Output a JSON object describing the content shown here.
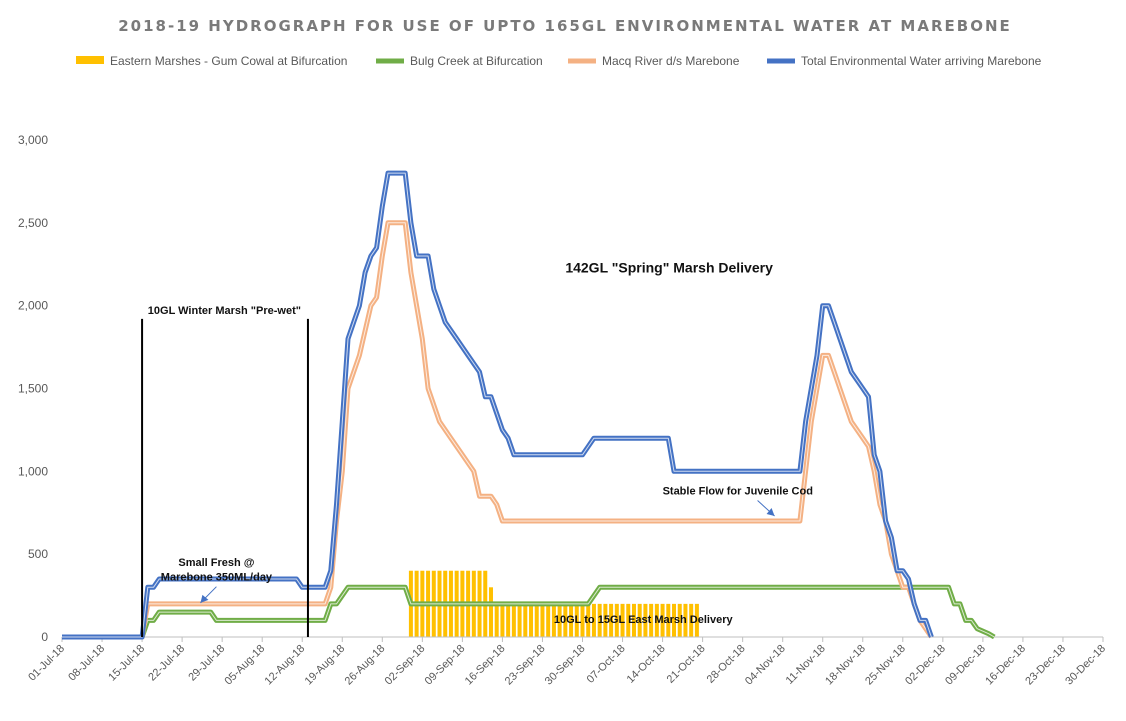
{
  "chart_data": {
    "type": "line",
    "title": "2018-19 HYDROGRAPH FOR USE OF UPTO 165GL ENVIRONMENTAL WATER AT MAREBONE",
    "xlabel": "",
    "ylabel": "",
    "ylim": [
      0,
      3000
    ],
    "yticks": [
      0,
      500,
      1000,
      1500,
      2000,
      2500,
      3000
    ],
    "ytick_labels": [
      "0",
      "500",
      "1,000",
      "1,500",
      "2,000",
      "2,500",
      "3,000"
    ],
    "xtick_labels": [
      "01-Jul-18",
      "08-Jul-18",
      "15-Jul-18",
      "22-Jul-18",
      "29-Jul-18",
      "05-Aug-18",
      "12-Aug-18",
      "19-Aug-18",
      "26-Aug-18",
      "02-Sep-18",
      "09-Sep-18",
      "16-Sep-18",
      "23-Sep-18",
      "30-Sep-18",
      "07-Oct-18",
      "14-Oct-18",
      "21-Oct-18",
      "28-Oct-18",
      "04-Nov-18",
      "11-Nov-18",
      "18-Nov-18",
      "25-Nov-18",
      "02-Dec-18",
      "09-Dec-18",
      "16-Dec-18",
      "23-Dec-18",
      "30-Dec-18"
    ],
    "x_range_days": [
      0,
      182
    ],
    "grid": false,
    "legend_position": "top",
    "series": [
      {
        "name": "Eastern Marshes - Gum Cowal at Bifurcation",
        "kind": "bar",
        "color": "#FFC000",
        "points": [
          [
            61,
            400
          ],
          [
            62,
            400
          ],
          [
            63,
            400
          ],
          [
            64,
            400
          ],
          [
            65,
            400
          ],
          [
            66,
            400
          ],
          [
            67,
            400
          ],
          [
            68,
            400
          ],
          [
            69,
            400
          ],
          [
            70,
            400
          ],
          [
            71,
            400
          ],
          [
            72,
            400
          ],
          [
            73,
            400
          ],
          [
            74,
            400
          ],
          [
            75,
            300
          ],
          [
            76,
            200
          ],
          [
            77,
            200
          ],
          [
            78,
            200
          ],
          [
            79,
            200
          ],
          [
            80,
            200
          ],
          [
            81,
            200
          ],
          [
            82,
            200
          ],
          [
            83,
            200
          ],
          [
            84,
            200
          ],
          [
            85,
            200
          ],
          [
            86,
            200
          ],
          [
            87,
            200
          ],
          [
            88,
            200
          ],
          [
            89,
            200
          ],
          [
            90,
            200
          ],
          [
            91,
            200
          ],
          [
            92,
            200
          ],
          [
            93,
            200
          ],
          [
            94,
            200
          ],
          [
            95,
            200
          ],
          [
            96,
            200
          ],
          [
            97,
            200
          ],
          [
            98,
            200
          ],
          [
            99,
            200
          ],
          [
            100,
            200
          ],
          [
            101,
            200
          ],
          [
            102,
            200
          ],
          [
            103,
            200
          ],
          [
            104,
            200
          ],
          [
            105,
            200
          ],
          [
            106,
            200
          ],
          [
            107,
            200
          ],
          [
            108,
            200
          ],
          [
            109,
            200
          ],
          [
            110,
            200
          ],
          [
            111,
            200
          ]
        ]
      },
      {
        "name": "Bulg Creek at Bifurcation",
        "kind": "line",
        "color": "#70AD47",
        "points": [
          [
            0,
            0
          ],
          [
            13,
            0
          ],
          [
            14,
            0
          ],
          [
            15,
            100
          ],
          [
            16,
            100
          ],
          [
            17,
            150
          ],
          [
            26,
            150
          ],
          [
            27,
            100
          ],
          [
            46,
            100
          ],
          [
            47,
            200
          ],
          [
            48,
            200
          ],
          [
            50,
            300
          ],
          [
            60,
            300
          ],
          [
            61,
            200
          ],
          [
            92,
            200
          ],
          [
            94,
            300
          ],
          [
            155,
            300
          ],
          [
            156,
            200
          ],
          [
            157,
            200
          ],
          [
            158,
            100
          ],
          [
            159,
            100
          ],
          [
            160,
            50
          ],
          [
            162,
            20
          ],
          [
            163,
            0
          ]
        ]
      },
      {
        "name": "Macq River d/s Marebone",
        "kind": "line",
        "color": "#F4B183",
        "points": [
          [
            0,
            0
          ],
          [
            13,
            0
          ],
          [
            14,
            0
          ],
          [
            15,
            200
          ],
          [
            46,
            200
          ],
          [
            47,
            300
          ],
          [
            48,
            700
          ],
          [
            49,
            1000
          ],
          [
            50,
            1500
          ],
          [
            52,
            1700
          ],
          [
            54,
            2000
          ],
          [
            55,
            2050
          ],
          [
            56,
            2300
          ],
          [
            57,
            2500
          ],
          [
            60,
            2500
          ],
          [
            61,
            2200
          ],
          [
            62,
            2000
          ],
          [
            63,
            1800
          ],
          [
            64,
            1500
          ],
          [
            66,
            1300
          ],
          [
            68,
            1200
          ],
          [
            70,
            1100
          ],
          [
            72,
            1000
          ],
          [
            73,
            850
          ],
          [
            75,
            850
          ],
          [
            76,
            800
          ],
          [
            77,
            700
          ],
          [
            129,
            700
          ],
          [
            131,
            1300
          ],
          [
            132,
            1500
          ],
          [
            133,
            1700
          ],
          [
            134,
            1700
          ],
          [
            135,
            1600
          ],
          [
            136,
            1500
          ],
          [
            137,
            1400
          ],
          [
            138,
            1300
          ],
          [
            140,
            1200
          ],
          [
            141,
            1150
          ],
          [
            142,
            1000
          ],
          [
            143,
            800
          ],
          [
            144,
            700
          ],
          [
            145,
            500
          ],
          [
            146,
            400
          ],
          [
            147,
            300
          ],
          [
            148,
            300
          ],
          [
            149,
            200
          ],
          [
            150,
            100
          ],
          [
            151,
            50
          ],
          [
            152,
            0
          ]
        ]
      },
      {
        "name": "Total Environmental Water arriving Marebone",
        "kind": "line",
        "color": "#4472C4",
        "points": [
          [
            0,
            0
          ],
          [
            13,
            0
          ],
          [
            14,
            0
          ],
          [
            15,
            300
          ],
          [
            16,
            300
          ],
          [
            17,
            350
          ],
          [
            41,
            350
          ],
          [
            42,
            300
          ],
          [
            46,
            300
          ],
          [
            47,
            400
          ],
          [
            48,
            800
          ],
          [
            49,
            1300
          ],
          [
            50,
            1800
          ],
          [
            51,
            1900
          ],
          [
            52,
            2000
          ],
          [
            53,
            2200
          ],
          [
            54,
            2300
          ],
          [
            55,
            2350
          ],
          [
            56,
            2600
          ],
          [
            57,
            2800
          ],
          [
            60,
            2800
          ],
          [
            61,
            2500
          ],
          [
            62,
            2300
          ],
          [
            64,
            2300
          ],
          [
            65,
            2100
          ],
          [
            66,
            2000
          ],
          [
            67,
            1900
          ],
          [
            69,
            1800
          ],
          [
            71,
            1700
          ],
          [
            73,
            1600
          ],
          [
            74,
            1450
          ],
          [
            75,
            1450
          ],
          [
            76,
            1350
          ],
          [
            77,
            1250
          ],
          [
            78,
            1200
          ],
          [
            79,
            1100
          ],
          [
            91,
            1100
          ],
          [
            92,
            1150
          ],
          [
            93,
            1200
          ],
          [
            106,
            1200
          ],
          [
            107,
            1000
          ],
          [
            129,
            1000
          ],
          [
            130,
            1300
          ],
          [
            131,
            1500
          ],
          [
            132,
            1700
          ],
          [
            133,
            2000
          ],
          [
            134,
            2000
          ],
          [
            135,
            1900
          ],
          [
            136,
            1800
          ],
          [
            137,
            1700
          ],
          [
            138,
            1600
          ],
          [
            140,
            1500
          ],
          [
            141,
            1450
          ],
          [
            142,
            1100
          ],
          [
            143,
            1000
          ],
          [
            144,
            700
          ],
          [
            145,
            600
          ],
          [
            146,
            400
          ],
          [
            147,
            400
          ],
          [
            148,
            350
          ],
          [
            149,
            200
          ],
          [
            150,
            100
          ],
          [
            151,
            100
          ],
          [
            152,
            0
          ]
        ]
      }
    ],
    "vertical_markers": [
      {
        "x": 14,
        "y_top": 1920
      },
      {
        "x": 43,
        "y_top": 1920
      }
    ],
    "annotations": [
      {
        "id": "winter",
        "text": "10GL Winter Marsh \"Pre-wet\"",
        "x": 15,
        "y": 1950
      },
      {
        "id": "spring",
        "text": "142GL \"Spring\" Marsh Delivery",
        "x": 88,
        "y": 2200
      },
      {
        "id": "fresh1",
        "text": "Small Fresh @",
        "x": 27,
        "y": 430
      },
      {
        "id": "fresh2",
        "text": "Marebone 350ML/day",
        "x": 27,
        "y": 340
      },
      {
        "id": "cod",
        "text": "Stable Flow for Juvenile Cod",
        "x": 105,
        "y": 860
      },
      {
        "id": "east",
        "text": "10GL to 15GL East Marsh Delivery",
        "x": 86,
        "y": 85
      }
    ]
  }
}
